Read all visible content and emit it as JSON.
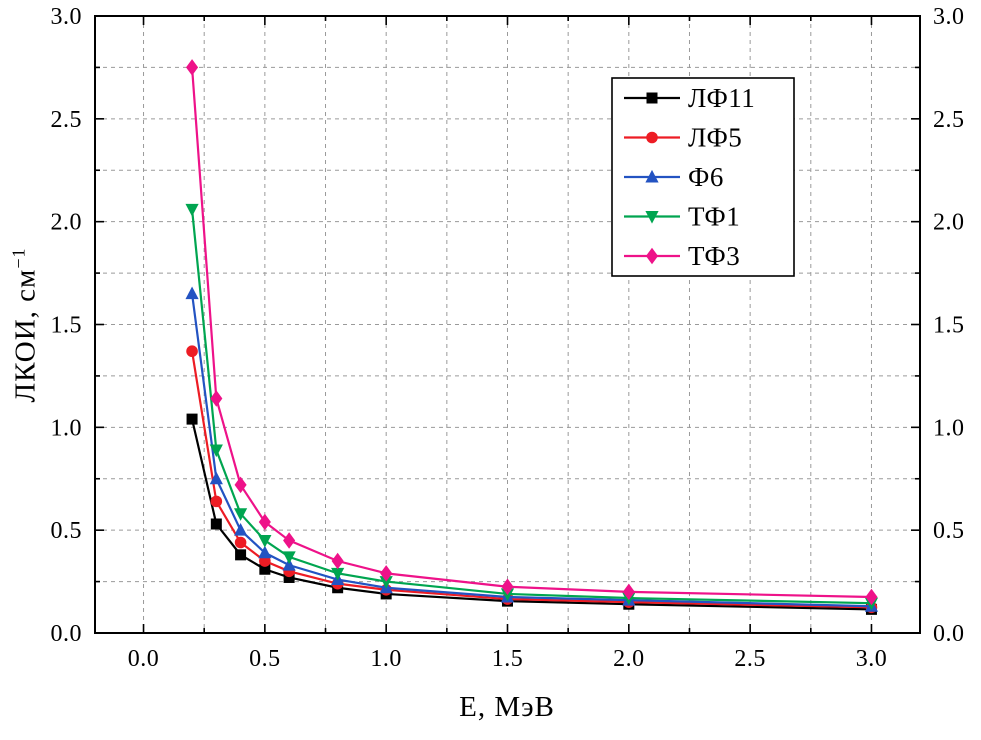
{
  "figure": {
    "background": "#ffffff"
  },
  "chart_data": {
    "type": "line",
    "title": "",
    "xlabel": "Е, МэВ",
    "ylabel": "ЛКОИ, см⁻¹",
    "ylabel_base": "ЛКОИ, см",
    "ylabel_superscript": "−1",
    "xlim": [
      -0.2,
      3.2
    ],
    "ylim": [
      0,
      3.0
    ],
    "x_tick_values": [
      0.0,
      0.5,
      1.0,
      1.5,
      2.0,
      2.5,
      3.0
    ],
    "x_tick_labels": [
      "0.0",
      "0.5",
      "1.0",
      "1.5",
      "2.0",
      "2.5",
      "3.0"
    ],
    "y_tick_values": [
      0.0,
      0.5,
      1.0,
      1.5,
      2.0,
      2.5,
      3.0
    ],
    "y_tick_labels": [
      "0.0",
      "0.5",
      "1.0",
      "1.5",
      "2.0",
      "2.5",
      "3.0"
    ],
    "minor_interval": 0.25,
    "major_interval": 0.5,
    "grid": true,
    "grid_style": "dashed",
    "grid_color": "#9a9a9a",
    "frame_color": "#000000",
    "legend_position": "top-right-inside",
    "x": [
      0.2,
      0.3,
      0.4,
      0.5,
      0.6,
      0.8,
      1.0,
      1.5,
      2.0,
      3.0
    ],
    "series": [
      {
        "name": "ЛФ11",
        "color": "#000000",
        "marker": "square",
        "values": [
          1.04,
          0.53,
          0.38,
          0.31,
          0.27,
          0.22,
          0.19,
          0.155,
          0.14,
          0.115
        ]
      },
      {
        "name": "ЛФ5",
        "color": "#ed1c24",
        "marker": "circle",
        "values": [
          1.37,
          0.64,
          0.44,
          0.35,
          0.3,
          0.24,
          0.21,
          0.165,
          0.15,
          0.125
        ]
      },
      {
        "name": "Ф6",
        "color": "#2353c2",
        "marker": "triangle-up",
        "values": [
          1.65,
          0.75,
          0.5,
          0.39,
          0.33,
          0.26,
          0.22,
          0.175,
          0.16,
          0.13
        ]
      },
      {
        "name": "ТФ1",
        "color": "#00a550",
        "marker": "triangle-down",
        "values": [
          2.06,
          0.89,
          0.58,
          0.45,
          0.37,
          0.29,
          0.25,
          0.19,
          0.17,
          0.145
        ]
      },
      {
        "name": "ТФ3",
        "color": "#ee1289",
        "marker": "diamond",
        "values": [
          2.75,
          1.14,
          0.72,
          0.54,
          0.45,
          0.35,
          0.29,
          0.225,
          0.2,
          0.175
        ]
      }
    ]
  }
}
